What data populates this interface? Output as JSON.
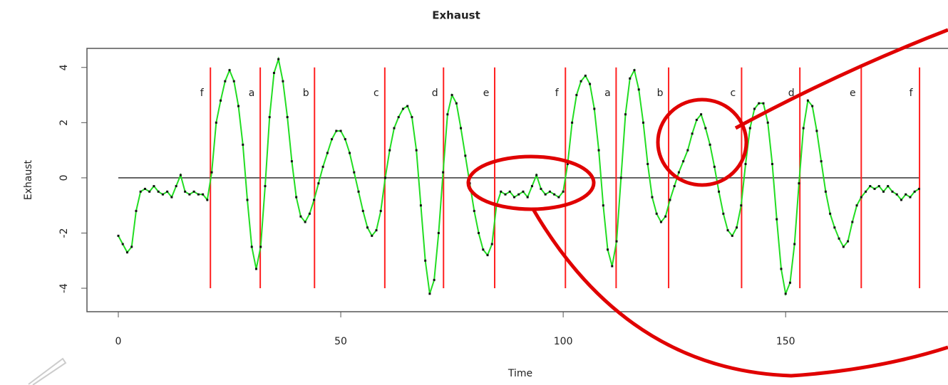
{
  "chart_data": {
    "type": "line",
    "title": "Exhaust",
    "x_label": "Time",
    "y_label": "Exhaust",
    "xlim": [
      -7.05,
      186.5
    ],
    "ylim": [
      -4.85,
      4.69
    ],
    "xticks": [
      0,
      50,
      100,
      150
    ],
    "yticks": [
      -4,
      -2,
      0,
      2,
      4
    ],
    "x": [
      0,
      1,
      2,
      3,
      4,
      5,
      6,
      7,
      8,
      9,
      10,
      11,
      12,
      13,
      14,
      15,
      16,
      17,
      18,
      19,
      20,
      21,
      22,
      23,
      24,
      25,
      26,
      27,
      28,
      29,
      30,
      31,
      32,
      33,
      34,
      35,
      36,
      37,
      38,
      39,
      40,
      41,
      42,
      43,
      44,
      45,
      46,
      47,
      48,
      49,
      50,
      51,
      52,
      53,
      54,
      55,
      56,
      57,
      58,
      59,
      60,
      61,
      62,
      63,
      64,
      65,
      66,
      67,
      68,
      69,
      70,
      71,
      72,
      73,
      74,
      75,
      76,
      77,
      78,
      79,
      80,
      81,
      82,
      83,
      84,
      85,
      86,
      87,
      88,
      89,
      90,
      91,
      92,
      93,
      94,
      95,
      96,
      97,
      98,
      99,
      100,
      101,
      102,
      103,
      104,
      105,
      106,
      107,
      108,
      109,
      110,
      111,
      112,
      113,
      114,
      115,
      116,
      117,
      118,
      119,
      120,
      121,
      122,
      123,
      124,
      125,
      126,
      127,
      128,
      129,
      130,
      131,
      132,
      133,
      134,
      135,
      136,
      137,
      138,
      139,
      140,
      141,
      142,
      143,
      144,
      145,
      146,
      147,
      148,
      149,
      150,
      151,
      152,
      153,
      154,
      155,
      156,
      157,
      158,
      159,
      160,
      161,
      162,
      163,
      164,
      165,
      166,
      167,
      168,
      169,
      170,
      171,
      172,
      173,
      174,
      175,
      176,
      177,
      178,
      179,
      180
    ],
    "series": [
      {
        "name": "Exhaust",
        "color": "#22dd22",
        "point_color": "#111111",
        "values": [
          -2.1,
          -2.4,
          -2.7,
          -2.5,
          -1.2,
          -0.5,
          -0.4,
          -0.5,
          -0.3,
          -0.5,
          -0.6,
          -0.5,
          -0.7,
          -0.3,
          0.1,
          -0.5,
          -0.6,
          -0.5,
          -0.6,
          -0.6,
          -0.8,
          0.2,
          2.0,
          2.8,
          3.5,
          3.9,
          3.5,
          2.6,
          1.2,
          -0.8,
          -2.5,
          -3.3,
          -2.5,
          -0.3,
          2.2,
          3.8,
          4.3,
          3.5,
          2.2,
          0.6,
          -0.7,
          -1.4,
          -1.6,
          -1.3,
          -0.8,
          -0.2,
          0.4,
          0.9,
          1.4,
          1.7,
          1.7,
          1.4,
          0.9,
          0.2,
          -0.5,
          -1.2,
          -1.8,
          -2.1,
          -1.9,
          -1.2,
          0.0,
          1.0,
          1.8,
          2.2,
          2.5,
          2.6,
          2.2,
          1.0,
          -1.0,
          -3.0,
          -4.2,
          -3.7,
          -2.0,
          0.2,
          2.3,
          3.0,
          2.7,
          1.8,
          0.8,
          -0.2,
          -1.2,
          -2.0,
          -2.6,
          -2.8,
          -2.4,
          -1.0,
          -0.5,
          -0.6,
          -0.5,
          -0.7,
          -0.6,
          -0.5,
          -0.7,
          -0.3,
          0.1,
          -0.4,
          -0.6,
          -0.5,
          -0.6,
          -0.7,
          -0.5,
          0.5,
          2.0,
          3.0,
          3.5,
          3.7,
          3.4,
          2.5,
          1.0,
          -1.0,
          -2.6,
          -3.2,
          -2.3,
          0.0,
          2.3,
          3.6,
          3.9,
          3.2,
          2.0,
          0.5,
          -0.7,
          -1.3,
          -1.6,
          -1.4,
          -0.8,
          -0.3,
          0.2,
          0.6,
          1.0,
          1.6,
          2.1,
          2.3,
          1.8,
          1.2,
          0.4,
          -0.5,
          -1.3,
          -1.9,
          -2.1,
          -1.8,
          -1.0,
          0.5,
          1.8,
          2.5,
          2.7,
          2.7,
          2.0,
          0.5,
          -1.5,
          -3.3,
          -4.2,
          -3.8,
          -2.4,
          -0.2,
          1.8,
          2.8,
          2.6,
          1.7,
          0.6,
          -0.5,
          -1.3,
          -1.8,
          -2.2,
          -2.5,
          -2.3,
          -1.6,
          -1.0,
          -0.7,
          -0.5,
          -0.3,
          -0.4,
          -0.3,
          -0.5,
          -0.3,
          -0.5,
          -0.6,
          -0.8,
          -0.6,
          -0.7,
          -0.5,
          -0.4
        ]
      }
    ],
    "hline": 0,
    "hline_xrange": [
      0,
      180
    ],
    "segment_color": "#ff2020",
    "segment_yrange": [
      -4,
      4
    ],
    "segment_label_y": 3.06,
    "segments": [
      {
        "label": "f",
        "x": 20.7
      },
      {
        "label": "a",
        "x": 31.9
      },
      {
        "label": "b",
        "x": 44.1
      },
      {
        "label": "c",
        "x": 59.9
      },
      {
        "label": "d",
        "x": 73.1
      },
      {
        "label": "e",
        "x": 84.6
      },
      {
        "label": "f",
        "x": 100.5
      },
      {
        "label": "a",
        "x": 111.9
      },
      {
        "label": "b",
        "x": 123.7
      },
      {
        "label": "c",
        "x": 140.1
      },
      {
        "label": "d",
        "x": 153.2
      },
      {
        "label": "e",
        "x": 167
      },
      {
        "label": "f",
        "x": 180.1
      }
    ]
  }
}
